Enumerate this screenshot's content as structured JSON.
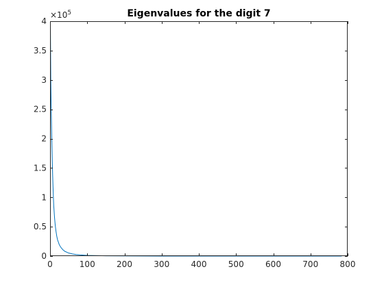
{
  "chart_data": {
    "type": "line",
    "title": "Eigenvalues for the digit 7",
    "xlabel": "",
    "ylabel": "",
    "xlim": [
      0,
      800
    ],
    "ylim": [
      0,
      4
    ],
    "y_multiplier": {
      "base": "×10",
      "exponent": "5"
    },
    "x_ticks": [
      0,
      100,
      200,
      300,
      400,
      500,
      600,
      700,
      800
    ],
    "x_tick_labels": [
      "0",
      "100",
      "200",
      "300",
      "400",
      "500",
      "600",
      "700",
      "800"
    ],
    "y_ticks": [
      0,
      0.5,
      1,
      1.5,
      2,
      2.5,
      3,
      3.5,
      4
    ],
    "y_tick_labels": [
      "0",
      "0.5",
      "1",
      "1.5",
      "2",
      "2.5",
      "3",
      "3.5",
      "4"
    ],
    "grid": false,
    "box": true,
    "series": [
      {
        "color": "#0072bd",
        "x": [
          1,
          2,
          3,
          4,
          5,
          6,
          7,
          8,
          9,
          10,
          12,
          14,
          16,
          18,
          20,
          25,
          30,
          35,
          40,
          50,
          60,
          70,
          80,
          100,
          120,
          150,
          200,
          250,
          300,
          400,
          500,
          600,
          700,
          784
        ],
        "y": [
          3.9,
          3.0,
          2.55,
          2.2,
          1.9,
          1.62,
          1.38,
          1.18,
          1.0,
          0.85,
          0.66,
          0.52,
          0.42,
          0.34,
          0.28,
          0.19,
          0.14,
          0.105,
          0.08,
          0.052,
          0.036,
          0.026,
          0.02,
          0.012,
          0.008,
          0.005,
          0.0025,
          0.0013,
          0.0007,
          0.0002,
          5e-05,
          1e-05,
          0.0,
          0.0
        ]
      }
    ]
  }
}
